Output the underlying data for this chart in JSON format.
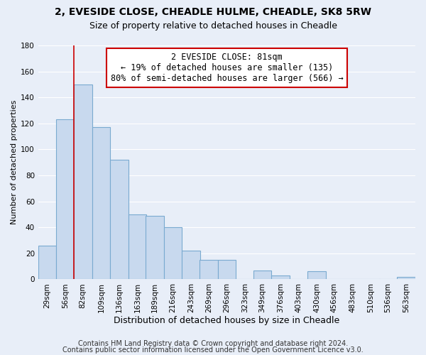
{
  "title": "2, EVESIDE CLOSE, CHEADLE HULME, CHEADLE, SK8 5RW",
  "subtitle": "Size of property relative to detached houses in Cheadle",
  "xlabel": "Distribution of detached houses by size in Cheadle",
  "ylabel": "Number of detached properties",
  "bar_color": "#c8d9ee",
  "bar_edge_color": "#7aaad0",
  "vline_color": "#cc0000",
  "vline_x": 82,
  "categories": [
    "29sqm",
    "56sqm",
    "82sqm",
    "109sqm",
    "136sqm",
    "163sqm",
    "189sqm",
    "216sqm",
    "243sqm",
    "269sqm",
    "296sqm",
    "323sqm",
    "349sqm",
    "376sqm",
    "403sqm",
    "430sqm",
    "456sqm",
    "483sqm",
    "510sqm",
    "536sqm",
    "563sqm"
  ],
  "bin_starts": [
    29,
    56,
    82,
    109,
    136,
    163,
    189,
    216,
    243,
    269,
    296,
    323,
    349,
    376,
    403,
    430,
    456,
    483,
    510,
    536,
    563
  ],
  "bin_width": 27,
  "values": [
    26,
    123,
    150,
    117,
    92,
    50,
    49,
    40,
    22,
    15,
    15,
    0,
    7,
    3,
    0,
    6,
    0,
    0,
    0,
    0,
    2
  ],
  "ylim": [
    0,
    180
  ],
  "yticks": [
    0,
    20,
    40,
    60,
    80,
    100,
    120,
    140,
    160,
    180
  ],
  "annotation_text": "2 EVESIDE CLOSE: 81sqm\n← 19% of detached houses are smaller (135)\n80% of semi-detached houses are larger (566) →",
  "annotation_box_color": "#ffffff",
  "annotation_border_color": "#cc0000",
  "footer_line1": "Contains HM Land Registry data © Crown copyright and database right 2024.",
  "footer_line2": "Contains public sector information licensed under the Open Government Licence v3.0.",
  "bg_color": "#e8eef8",
  "plot_bg_color": "#e8eef8",
  "grid_color": "#ffffff",
  "title_fontsize": 10,
  "subtitle_fontsize": 9,
  "xlabel_fontsize": 9,
  "ylabel_fontsize": 8,
  "tick_fontsize": 7.5,
  "annotation_fontsize": 8.5,
  "footer_fontsize": 7
}
